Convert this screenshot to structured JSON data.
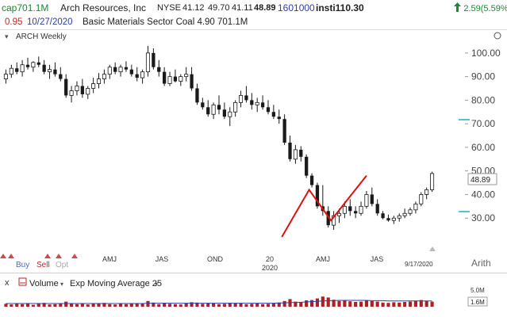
{
  "header": {
    "cap_label": "cap701.1M",
    "company": "Arch Resources, Inc",
    "exchange": "NYSE",
    "quote_open": "41.12",
    "quote_high": "49.70",
    "quote_low": "41.11",
    "last_price": "48.89",
    "volume": "1601000",
    "insti_label": "insti110.30",
    "change_text": "2.59(5.59%)",
    "change_color": "#1b8a2e",
    "change_icon": "up-arrow-icon"
  },
  "header2": {
    "eps_value": "0.95",
    "date": "10/27/2020",
    "sector_text": "Basic Materials Sector  Coal  4.90  701.1M"
  },
  "chart_data": {
    "type": "candlestick",
    "title": "ARCH Weekly",
    "x_tick_labels": [
      "AMJ",
      "JAS",
      "OND",
      "20",
      "AMJ",
      "JAS"
    ],
    "year_label": "2020",
    "y_tick_labels": [
      "100.00",
      "90.00",
      "80.00",
      "70.00",
      "60.00",
      "50.00",
      "40.00",
      "30.00"
    ],
    "ylim": [
      21,
      106
    ],
    "price_flag": "48.89",
    "scale_label": "Arith",
    "date_marker": "9/17/2020",
    "marker_labels": [
      "Buy",
      "Sell",
      "Opt"
    ],
    "candles": [
      {
        "o": 89.0,
        "h": 93.0,
        "l": 87.0,
        "c": 91.0
      },
      {
        "o": 91.0,
        "h": 95.0,
        "l": 89.5,
        "c": 93.5
      },
      {
        "o": 93.5,
        "h": 96.0,
        "l": 91.0,
        "c": 92.0
      },
      {
        "o": 92.0,
        "h": 97.0,
        "l": 90.0,
        "c": 95.0
      },
      {
        "o": 95.0,
        "h": 98.0,
        "l": 93.0,
        "c": 94.0
      },
      {
        "o": 94.0,
        "h": 96.5,
        "l": 92.0,
        "c": 96.0
      },
      {
        "o": 96.0,
        "h": 98.5,
        "l": 94.0,
        "c": 95.0
      },
      {
        "o": 95.0,
        "h": 97.0,
        "l": 91.0,
        "c": 92.0
      },
      {
        "o": 92.0,
        "h": 95.0,
        "l": 89.0,
        "c": 93.0
      },
      {
        "o": 93.0,
        "h": 96.0,
        "l": 90.0,
        "c": 91.0
      },
      {
        "o": 91.0,
        "h": 94.0,
        "l": 88.0,
        "c": 89.0
      },
      {
        "o": 89.0,
        "h": 91.0,
        "l": 81.0,
        "c": 82.0
      },
      {
        "o": 82.0,
        "h": 86.0,
        "l": 79.0,
        "c": 84.0
      },
      {
        "o": 84.0,
        "h": 88.0,
        "l": 82.0,
        "c": 86.0
      },
      {
        "o": 86.0,
        "h": 89.0,
        "l": 81.0,
        "c": 82.5
      },
      {
        "o": 82.5,
        "h": 86.0,
        "l": 80.5,
        "c": 85.0
      },
      {
        "o": 85.0,
        "h": 89.5,
        "l": 83.0,
        "c": 87.0
      },
      {
        "o": 87.0,
        "h": 91.5,
        "l": 85.0,
        "c": 89.0
      },
      {
        "o": 89.0,
        "h": 93.0,
        "l": 87.0,
        "c": 91.0
      },
      {
        "o": 91.0,
        "h": 95.0,
        "l": 89.0,
        "c": 94.0
      },
      {
        "o": 94.0,
        "h": 96.0,
        "l": 91.0,
        "c": 92.0
      },
      {
        "o": 92.0,
        "h": 95.0,
        "l": 90.0,
        "c": 94.0
      },
      {
        "o": 94.0,
        "h": 96.5,
        "l": 92.0,
        "c": 93.0
      },
      {
        "o": 93.0,
        "h": 95.0,
        "l": 90.0,
        "c": 91.0
      },
      {
        "o": 91.0,
        "h": 94.0,
        "l": 88.0,
        "c": 89.5
      },
      {
        "o": 89.5,
        "h": 93.0,
        "l": 87.0,
        "c": 92.0
      },
      {
        "o": 92.0,
        "h": 103.0,
        "l": 90.0,
        "c": 100.0
      },
      {
        "o": 100.0,
        "h": 102.0,
        "l": 93.0,
        "c": 94.0
      },
      {
        "o": 94.0,
        "h": 97.0,
        "l": 90.0,
        "c": 92.0
      },
      {
        "o": 92.0,
        "h": 94.0,
        "l": 86.0,
        "c": 87.0
      },
      {
        "o": 87.0,
        "h": 92.0,
        "l": 86.0,
        "c": 90.0
      },
      {
        "o": 90.0,
        "h": 93.0,
        "l": 87.5,
        "c": 88.0
      },
      {
        "o": 88.0,
        "h": 91.0,
        "l": 86.0,
        "c": 90.0
      },
      {
        "o": 90.0,
        "h": 94.0,
        "l": 88.0,
        "c": 91.0
      },
      {
        "o": 91.0,
        "h": 94.0,
        "l": 84.0,
        "c": 85.0
      },
      {
        "o": 85.0,
        "h": 87.0,
        "l": 78.0,
        "c": 79.0
      },
      {
        "o": 79.0,
        "h": 81.0,
        "l": 76.0,
        "c": 77.0
      },
      {
        "o": 77.0,
        "h": 80.0,
        "l": 73.0,
        "c": 74.0
      },
      {
        "o": 74.0,
        "h": 79.0,
        "l": 72.0,
        "c": 78.0
      },
      {
        "o": 78.0,
        "h": 82.0,
        "l": 74.0,
        "c": 76.0
      },
      {
        "o": 76.0,
        "h": 79.0,
        "l": 72.0,
        "c": 73.0
      },
      {
        "o": 73.0,
        "h": 77.0,
        "l": 69.0,
        "c": 75.0
      },
      {
        "o": 75.0,
        "h": 80.0,
        "l": 73.0,
        "c": 79.0
      },
      {
        "o": 79.0,
        "h": 84.0,
        "l": 77.0,
        "c": 82.0
      },
      {
        "o": 82.0,
        "h": 86.0,
        "l": 79.0,
        "c": 80.0
      },
      {
        "o": 80.0,
        "h": 83.0,
        "l": 76.0,
        "c": 78.0
      },
      {
        "o": 78.0,
        "h": 81.0,
        "l": 75.0,
        "c": 79.0
      },
      {
        "o": 79.0,
        "h": 82.0,
        "l": 76.0,
        "c": 77.0
      },
      {
        "o": 77.0,
        "h": 80.0,
        "l": 74.0,
        "c": 75.0
      },
      {
        "o": 75.0,
        "h": 78.0,
        "l": 72.0,
        "c": 73.0
      },
      {
        "o": 73.0,
        "h": 76.0,
        "l": 70.0,
        "c": 72.0
      },
      {
        "o": 72.0,
        "h": 74.0,
        "l": 61.0,
        "c": 62.0
      },
      {
        "o": 62.0,
        "h": 65.0,
        "l": 54.0,
        "c": 55.0
      },
      {
        "o": 55.0,
        "h": 61.0,
        "l": 53.0,
        "c": 59.0
      },
      {
        "o": 59.0,
        "h": 60.5,
        "l": 54.0,
        "c": 56.0
      },
      {
        "o": 56.0,
        "h": 57.0,
        "l": 47.0,
        "c": 48.0
      },
      {
        "o": 48.0,
        "h": 49.0,
        "l": 43.0,
        "c": 44.0
      },
      {
        "o": 44.0,
        "h": 45.0,
        "l": 34.0,
        "c": 35.0
      },
      {
        "o": 35.0,
        "h": 44.0,
        "l": 31.0,
        "c": 33.0
      },
      {
        "o": 33.0,
        "h": 35.0,
        "l": 26.0,
        "c": 27.0
      },
      {
        "o": 27.0,
        "h": 33.0,
        "l": 25.0,
        "c": 31.0
      },
      {
        "o": 31.0,
        "h": 34.0,
        "l": 28.0,
        "c": 32.0
      },
      {
        "o": 32.0,
        "h": 37.0,
        "l": 30.0,
        "c": 35.0
      },
      {
        "o": 35.0,
        "h": 38.0,
        "l": 31.0,
        "c": 33.0
      },
      {
        "o": 33.0,
        "h": 35.0,
        "l": 30.0,
        "c": 32.0
      },
      {
        "o": 32.0,
        "h": 37.0,
        "l": 31.0,
        "c": 35.0
      },
      {
        "o": 35.0,
        "h": 41.5,
        "l": 34.0,
        "c": 40.0
      },
      {
        "o": 40.0,
        "h": 43.0,
        "l": 35.0,
        "c": 36.0
      },
      {
        "o": 36.0,
        "h": 38.0,
        "l": 31.0,
        "c": 32.0
      },
      {
        "o": 32.0,
        "h": 33.0,
        "l": 29.5,
        "c": 30.0
      },
      {
        "o": 30.0,
        "h": 31.5,
        "l": 28.5,
        "c": 29.0
      },
      {
        "o": 29.0,
        "h": 31.0,
        "l": 27.5,
        "c": 30.0
      },
      {
        "o": 30.0,
        "h": 32.0,
        "l": 28.5,
        "c": 31.0
      },
      {
        "o": 31.0,
        "h": 34.0,
        "l": 30.0,
        "c": 32.0
      },
      {
        "o": 32.0,
        "h": 34.5,
        "l": 31.0,
        "c": 33.5
      },
      {
        "o": 33.5,
        "h": 37.0,
        "l": 32.0,
        "c": 36.0
      },
      {
        "o": 36.0,
        "h": 41.0,
        "l": 35.0,
        "c": 40.0
      },
      {
        "o": 40.0,
        "h": 43.0,
        "l": 38.0,
        "c": 42.0
      },
      {
        "o": 42.0,
        "h": 49.7,
        "l": 41.1,
        "c": 48.9
      }
    ],
    "trendline": [
      [
        50.5,
        22.0
      ],
      [
        55.5,
        42.0
      ],
      [
        59.5,
        29.0
      ],
      [
        66.0,
        48.0
      ]
    ]
  },
  "volume_panel": {
    "label": "Volume",
    "ema_label": "Exp Moving Average 25",
    "max_label": "5.0M",
    "current_label": "1.6M",
    "values": [
      0.9,
      0.7,
      1.1,
      0.8,
      1.0,
      0.6,
      0.9,
      1.2,
      0.7,
      0.8,
      1.0,
      1.6,
      0.9,
      0.8,
      1.1,
      0.7,
      0.9,
      1.0,
      1.2,
      0.8,
      0.7,
      0.9,
      0.8,
      1.1,
      1.0,
      0.9,
      1.8,
      1.3,
      0.8,
      1.2,
      0.9,
      0.8,
      0.7,
      1.0,
      1.4,
      1.3,
      0.9,
      1.1,
      1.0,
      0.8,
      0.9,
      1.2,
      1.1,
      1.0,
      0.8,
      0.9,
      1.0,
      0.8,
      0.9,
      1.1,
      1.3,
      1.8,
      2.4,
      1.6,
      1.4,
      2.0,
      2.1,
      2.6,
      3.2,
      2.9,
      2.2,
      1.8,
      2.0,
      1.7,
      1.5,
      1.6,
      2.0,
      1.8,
      1.6,
      1.3,
      1.2,
      1.4,
      1.3,
      1.5,
      1.6,
      1.9,
      2.1,
      1.8,
      1.6
    ],
    "ema": [
      1.0,
      1.0,
      1.0,
      1.0,
      1.0,
      1.0,
      1.0,
      1.0,
      1.0,
      1.0,
      1.0,
      1.0,
      1.0,
      1.0,
      1.0,
      1.0,
      1.0,
      1.0,
      1.0,
      1.0,
      1.0,
      1.0,
      1.0,
      1.0,
      1.0,
      1.0,
      1.1,
      1.1,
      1.1,
      1.1,
      1.1,
      1.1,
      1.1,
      1.1,
      1.1,
      1.1,
      1.1,
      1.1,
      1.1,
      1.1,
      1.1,
      1.1,
      1.1,
      1.1,
      1.1,
      1.1,
      1.1,
      1.1,
      1.1,
      1.1,
      1.2,
      1.2,
      1.3,
      1.3,
      1.4,
      1.5,
      1.6,
      1.7,
      1.8,
      1.9,
      1.9,
      2.0,
      2.0,
      2.0,
      2.0,
      2.0,
      2.0,
      1.9,
      1.9,
      1.9,
      1.8,
      1.8,
      1.8,
      1.8,
      1.8,
      1.8,
      1.8,
      1.8,
      1.8
    ]
  },
  "colors": {
    "candle_body": "#1a1a1a",
    "trendline": "#e01010",
    "ema_line": "#2b3fa8",
    "volume_bar": "#b02020",
    "marker_teal": "#19b3c0"
  }
}
